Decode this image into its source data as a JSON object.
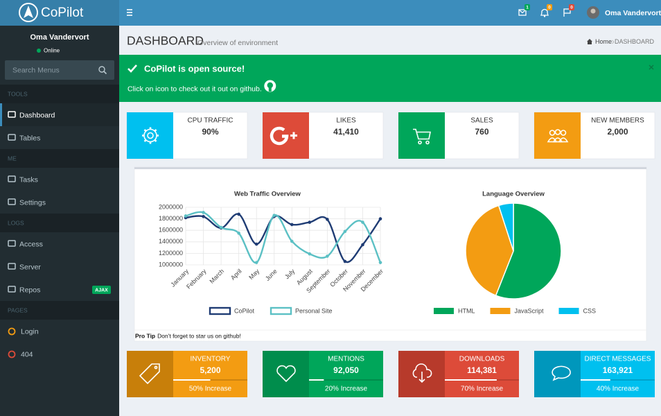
{
  "brand": "CoPilot",
  "topbar": {
    "user": "Oma Vandervort",
    "notifications": [
      {
        "count": 1,
        "color": "#00a65a"
      },
      {
        "count": 0,
        "color": "#f39c12"
      },
      {
        "count": 0,
        "color": "#dd4b39"
      }
    ]
  },
  "sidebar": {
    "user": "Oma Vandervort",
    "status": "Online",
    "search": "Search Menus",
    "sections": [
      {
        "title": "TOOLS",
        "items": [
          {
            "label": "Dashboard"
          },
          {
            "label": "Tables"
          }
        ]
      },
      {
        "title": "ME",
        "items": [
          {
            "label": "Tasks"
          },
          {
            "label": "Settings"
          }
        ]
      },
      {
        "title": "LOGS",
        "items": [
          {
            "label": "Access"
          },
          {
            "label": "Server"
          },
          {
            "label": "Repos",
            "badge": "AJAX"
          }
        ]
      },
      {
        "title": "PAGES",
        "items": [
          {
            "label": "Login"
          },
          {
            "label": "404"
          }
        ]
      }
    ]
  },
  "header": {
    "title": "DASHBOARD",
    "subtitle": "Overview of environment",
    "breadcrumb": [
      "Home",
      "DASHBOARD"
    ]
  },
  "alert": {
    "title": "CoPilot is open source!",
    "text": "Click on icon to check out it out on github."
  },
  "stat_boxes": [
    {
      "label": "CPU TRAFFIC",
      "value": "90%",
      "color": "#00c0ef"
    },
    {
      "label": "LIKES",
      "value": "41,410",
      "color": "#dd4b39"
    },
    {
      "label": "SALES",
      "value": "760",
      "color": "#00a65a"
    },
    {
      "label": "NEW MEMBERS",
      "value": "2,000",
      "color": "#f39c12"
    }
  ],
  "chart_data": [
    {
      "type": "line",
      "title": "Web Traffic Overview",
      "categories": [
        "January",
        "February",
        "March",
        "April",
        "May",
        "June",
        "July",
        "August",
        "September",
        "October",
        "November",
        "December"
      ],
      "series": [
        {
          "name": "CoPilot",
          "color": "#1f3c74",
          "values": [
            1820000,
            1840000,
            1640000,
            1880000,
            1360000,
            1840000,
            1700000,
            1740000,
            1790000,
            1060000,
            1350000,
            1800000
          ]
        },
        {
          "name": "Personal Site",
          "color": "#5bc0c4",
          "values": [
            1850000,
            1910000,
            1650000,
            1550000,
            1040000,
            1860000,
            1410000,
            1190000,
            1150000,
            1580000,
            1740000,
            1040000
          ]
        }
      ],
      "ylim": [
        1000000,
        2000000
      ],
      "yticks": [
        1000000,
        1200000,
        1400000,
        1600000,
        1800000,
        2000000
      ],
      "grid": true,
      "legend": "bottom"
    },
    {
      "type": "pie",
      "title": "Language Overview",
      "categories": [
        "HTML",
        "JavaScript",
        "CSS"
      ],
      "values": [
        56,
        39,
        5
      ],
      "colors": [
        "#00a65a",
        "#f39c12",
        "#00c0ef"
      ],
      "legend": "bottom"
    }
  ],
  "panel_footer": {
    "label": "Pro Tip",
    "text": "Don't forget to star us on github!"
  },
  "progress_boxes": [
    {
      "label": "INVENTORY",
      "value": "5,200",
      "progress": 50,
      "description": "50% Increase",
      "color": "#f39c12",
      "icon_color": "#c87f0a"
    },
    {
      "label": "MENTIONS",
      "value": "92,050",
      "progress": 20,
      "description": "20% Increase",
      "color": "#00a65a",
      "icon_color": "#008d4c"
    },
    {
      "label": "DOWNLOADS",
      "value": "114,381",
      "progress": 70,
      "description": "70% Increase",
      "color": "#dd4b39",
      "icon_color": "#b73a2b"
    },
    {
      "label": "DIRECT MESSAGES",
      "value": "163,921",
      "progress": 40,
      "description": "40% Increase",
      "color": "#00c0ef",
      "icon_color": "#0097bc"
    }
  ]
}
